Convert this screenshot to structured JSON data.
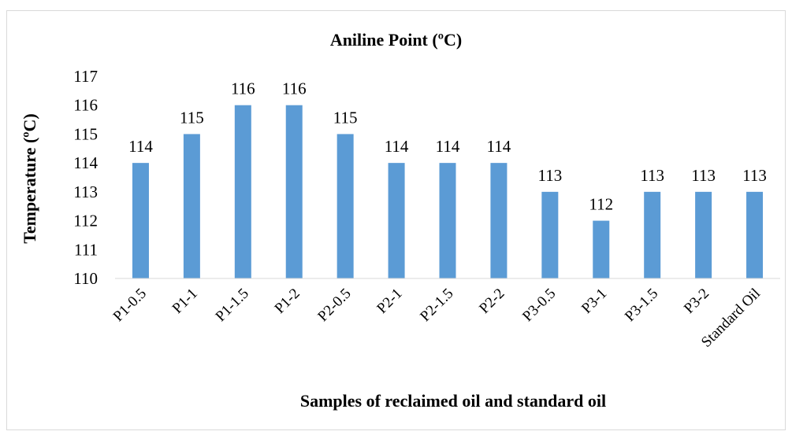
{
  "chart_data": {
    "type": "bar",
    "title": "Aniline Point (ºC)",
    "xlabel": "Samples of reclaimed oil and standard oil",
    "ylabel": "Temperature (ºC)",
    "categories": [
      "P1-0.5",
      "P1-1",
      "P1-1.5",
      "P1-2",
      "P2-0.5",
      "P2-1",
      "P2-1.5",
      "P2-2",
      "P3-0.5",
      "P3-1",
      "P3-1.5",
      "P3-2",
      "Standard Oil"
    ],
    "values": [
      114,
      115,
      116,
      116,
      115,
      114,
      114,
      114,
      113,
      112,
      113,
      113,
      113
    ],
    "ylim": [
      110,
      117
    ],
    "yticks": [
      110,
      111,
      112,
      113,
      114,
      115,
      116,
      117
    ],
    "grid": false,
    "legend": "none",
    "data_labels": true,
    "bar_color": "#5b9bd5"
  }
}
